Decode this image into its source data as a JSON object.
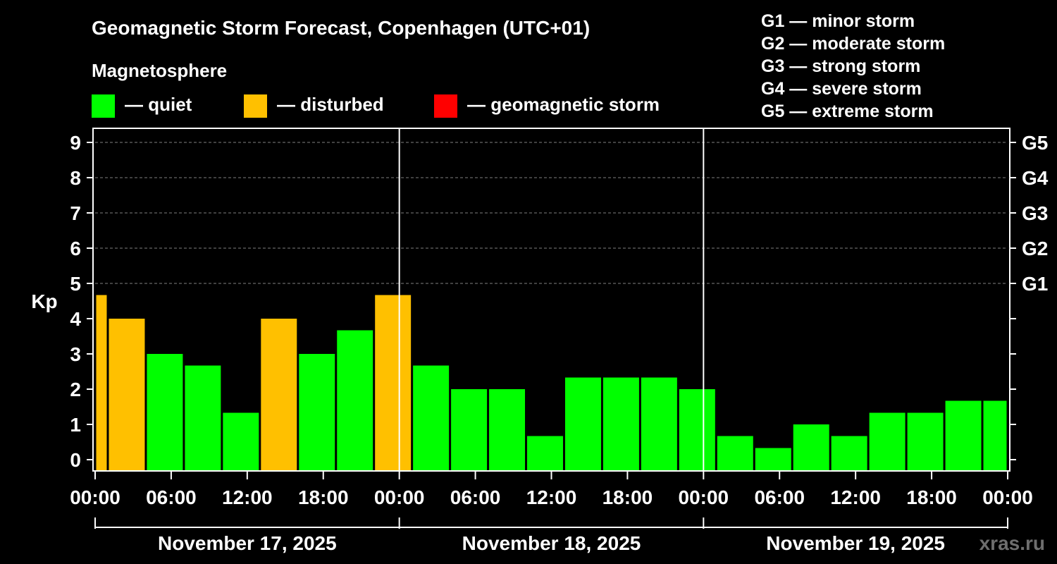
{
  "chart_data": {
    "type": "bar",
    "title": "Geomagnetic Storm Forecast, Copenhagen (UTC+01)",
    "legend_title": "Magnetosphere",
    "legend": [
      {
        "label": "— quiet",
        "color": "#00ff00"
      },
      {
        "label": "— disturbed",
        "color": "#ffc000"
      },
      {
        "label": "— geomagnetic storm",
        "color": "#ff0000"
      }
    ],
    "g_scale": [
      "G1 — minor storm",
      "G2 — moderate storm",
      "G3 — strong storm",
      "G4 — severe storm",
      "G5 — extreme storm"
    ],
    "ylabel": "Kp",
    "ylim": [
      0,
      9
    ],
    "yticks": [
      "0",
      "1",
      "2",
      "3",
      "4",
      "5",
      "6",
      "7",
      "8",
      "9"
    ],
    "right_ticks": [
      {
        "kp": 5,
        "label": "G1"
      },
      {
        "kp": 6,
        "label": "G2"
      },
      {
        "kp": 7,
        "label": "G3"
      },
      {
        "kp": 8,
        "label": "G4"
      },
      {
        "kp": 9,
        "label": "G5"
      }
    ],
    "x_range_hours": [
      0,
      72
    ],
    "xticks": [
      {
        "hour": 0,
        "label": "00:00"
      },
      {
        "hour": 6,
        "label": "06:00"
      },
      {
        "hour": 12,
        "label": "12:00"
      },
      {
        "hour": 18,
        "label": "18:00"
      },
      {
        "hour": 24,
        "label": "00:00"
      },
      {
        "hour": 30,
        "label": "06:00"
      },
      {
        "hour": 36,
        "label": "12:00"
      },
      {
        "hour": 42,
        "label": "18:00"
      },
      {
        "hour": 48,
        "label": "00:00"
      },
      {
        "hour": 54,
        "label": "06:00"
      },
      {
        "hour": 60,
        "label": "12:00"
      },
      {
        "hour": 66,
        "label": "18:00"
      },
      {
        "hour": 72,
        "label": "00:00"
      }
    ],
    "days": [
      {
        "label": "November 17, 2025",
        "start_hour": 0,
        "end_hour": 24
      },
      {
        "label": "November 18, 2025",
        "start_hour": 24,
        "end_hour": 48
      },
      {
        "label": "November 19, 2025",
        "start_hour": 48,
        "end_hour": 72
      }
    ],
    "bars": [
      {
        "start_hour": 0,
        "end_hour": 1,
        "kp": 4.67,
        "status": "disturbed"
      },
      {
        "start_hour": 1,
        "end_hour": 4,
        "kp": 4.0,
        "status": "disturbed"
      },
      {
        "start_hour": 4,
        "end_hour": 7,
        "kp": 3.0,
        "status": "quiet"
      },
      {
        "start_hour": 7,
        "end_hour": 10,
        "kp": 2.67,
        "status": "quiet"
      },
      {
        "start_hour": 10,
        "end_hour": 13,
        "kp": 1.33,
        "status": "quiet"
      },
      {
        "start_hour": 13,
        "end_hour": 16,
        "kp": 4.0,
        "status": "disturbed"
      },
      {
        "start_hour": 16,
        "end_hour": 19,
        "kp": 3.0,
        "status": "quiet"
      },
      {
        "start_hour": 19,
        "end_hour": 22,
        "kp": 3.67,
        "status": "quiet"
      },
      {
        "start_hour": 22,
        "end_hour": 25,
        "kp": 4.67,
        "status": "disturbed"
      },
      {
        "start_hour": 25,
        "end_hour": 28,
        "kp": 2.67,
        "status": "quiet"
      },
      {
        "start_hour": 28,
        "end_hour": 31,
        "kp": 2.0,
        "status": "quiet"
      },
      {
        "start_hour": 31,
        "end_hour": 34,
        "kp": 2.0,
        "status": "quiet"
      },
      {
        "start_hour": 34,
        "end_hour": 37,
        "kp": 0.67,
        "status": "quiet"
      },
      {
        "start_hour": 37,
        "end_hour": 40,
        "kp": 2.33,
        "status": "quiet"
      },
      {
        "start_hour": 40,
        "end_hour": 43,
        "kp": 2.33,
        "status": "quiet"
      },
      {
        "start_hour": 43,
        "end_hour": 46,
        "kp": 2.33,
        "status": "quiet"
      },
      {
        "start_hour": 46,
        "end_hour": 49,
        "kp": 2.0,
        "status": "quiet"
      },
      {
        "start_hour": 49,
        "end_hour": 52,
        "kp": 0.67,
        "status": "quiet"
      },
      {
        "start_hour": 52,
        "end_hour": 55,
        "kp": 0.33,
        "status": "quiet"
      },
      {
        "start_hour": 55,
        "end_hour": 58,
        "kp": 1.0,
        "status": "quiet"
      },
      {
        "start_hour": 58,
        "end_hour": 61,
        "kp": 0.67,
        "status": "quiet"
      },
      {
        "start_hour": 61,
        "end_hour": 64,
        "kp": 1.33,
        "status": "quiet"
      },
      {
        "start_hour": 64,
        "end_hour": 67,
        "kp": 1.33,
        "status": "quiet"
      },
      {
        "start_hour": 67,
        "end_hour": 70,
        "kp": 1.67,
        "status": "quiet"
      },
      {
        "start_hour": 70,
        "end_hour": 72,
        "kp": 1.67,
        "status": "quiet"
      }
    ],
    "colors": {
      "quiet": "#00ff00",
      "disturbed": "#ffc000",
      "storm": "#ff0000",
      "grid": "#808080",
      "axis": "#ffffff"
    },
    "watermark": "xras.ru"
  }
}
